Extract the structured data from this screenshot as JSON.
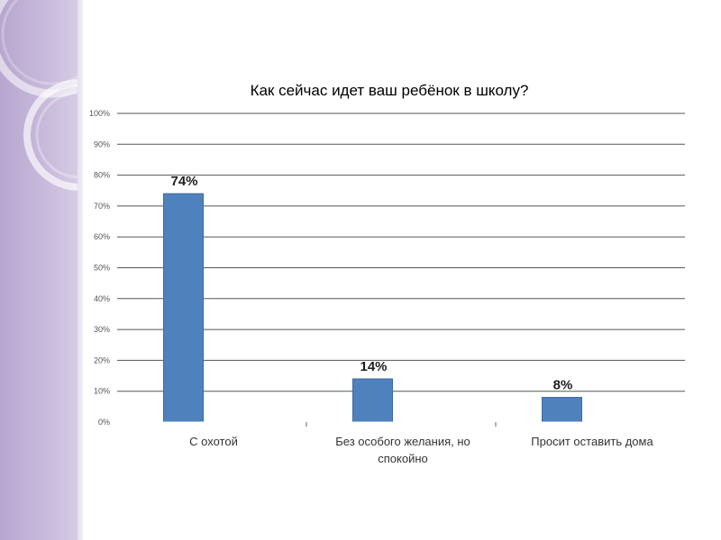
{
  "slide": {
    "accent_color": "#b7a6cf"
  },
  "chart_data": {
    "type": "bar",
    "title": "Как сейчас идет ваш ребёнок в школу?",
    "categories": [
      "С охотой",
      "Без особого желания, но спокойно",
      "Просит оставить дома"
    ],
    "category_lines": [
      [
        "С охотой"
      ],
      [
        "Без особого желания, но",
        "спокойно"
      ],
      [
        "Просит оставить дома"
      ]
    ],
    "values": [
      74,
      14,
      8
    ],
    "data_labels": [
      "74%",
      "14%",
      "8%"
    ],
    "ylim": [
      0,
      100
    ],
    "yticks": [
      "0%",
      "10%",
      "20%",
      "30%",
      "40%",
      "50%",
      "60%",
      "70%",
      "80%",
      "90%",
      "100%"
    ],
    "gridlines": true,
    "legend": "none",
    "bar_color": "#4f81bd",
    "xlabel": "",
    "ylabel": ""
  }
}
